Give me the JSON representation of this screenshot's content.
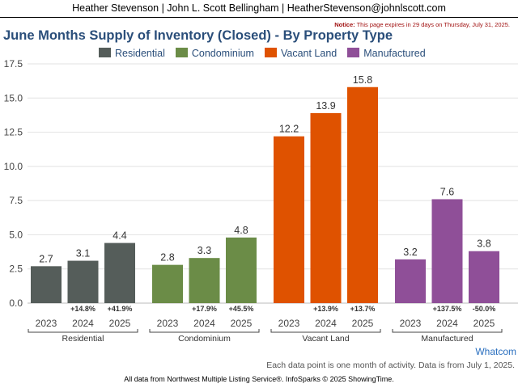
{
  "header": {
    "agents": "Heather Stevenson | John L. Scott Bellingham | HeatherStevenson@johnlscott.com"
  },
  "notice": {
    "label": "Notice:",
    "text": "This page expires in 29 days on Thursday, July 31, 2025."
  },
  "footer": {
    "note": "Each data point is one month of activity. Data is from July 1, 2025.",
    "credit": "All data from Northwest Multiple Listing Service®. InfoSparks © 2025 ShowingTime.",
    "brand": "Whatcom"
  },
  "chart_data": {
    "type": "bar",
    "title": "June Months Supply of Inventory (Closed) - By Property Type",
    "ylim": [
      0,
      17.5
    ],
    "yticks": [
      "0.0",
      "2.5",
      "5.0",
      "7.5",
      "10.0",
      "12.5",
      "15.0",
      "17.5"
    ],
    "grid": true,
    "legend_position": "top",
    "years": [
      "2023",
      "2024",
      "2025"
    ],
    "groups": [
      {
        "name": "Residential",
        "color": "#555d5a",
        "values": [
          2.7,
          3.1,
          4.4
        ],
        "labels": [
          "2.7",
          "3.1",
          "4.4"
        ],
        "changes": [
          "",
          "+14.8%",
          "+41.9%"
        ]
      },
      {
        "name": "Condominium",
        "color": "#6b8c47",
        "values": [
          2.8,
          3.3,
          4.8
        ],
        "labels": [
          "2.8",
          "3.3",
          "4.8"
        ],
        "changes": [
          "",
          "+17.9%",
          "+45.5%"
        ]
      },
      {
        "name": "Vacant Land",
        "color": "#df5200",
        "values": [
          12.2,
          13.9,
          15.8
        ],
        "labels": [
          "12.2",
          "13.9",
          "15.8"
        ],
        "changes": [
          "",
          "+13.9%",
          "+13.7%"
        ]
      },
      {
        "name": "Manufactured",
        "color": "#8f4f98",
        "values": [
          3.2,
          7.6,
          3.8
        ],
        "labels": [
          "3.2",
          "7.6",
          "3.8"
        ],
        "changes": [
          "",
          "+137.5%",
          "-50.0%"
        ]
      }
    ]
  }
}
